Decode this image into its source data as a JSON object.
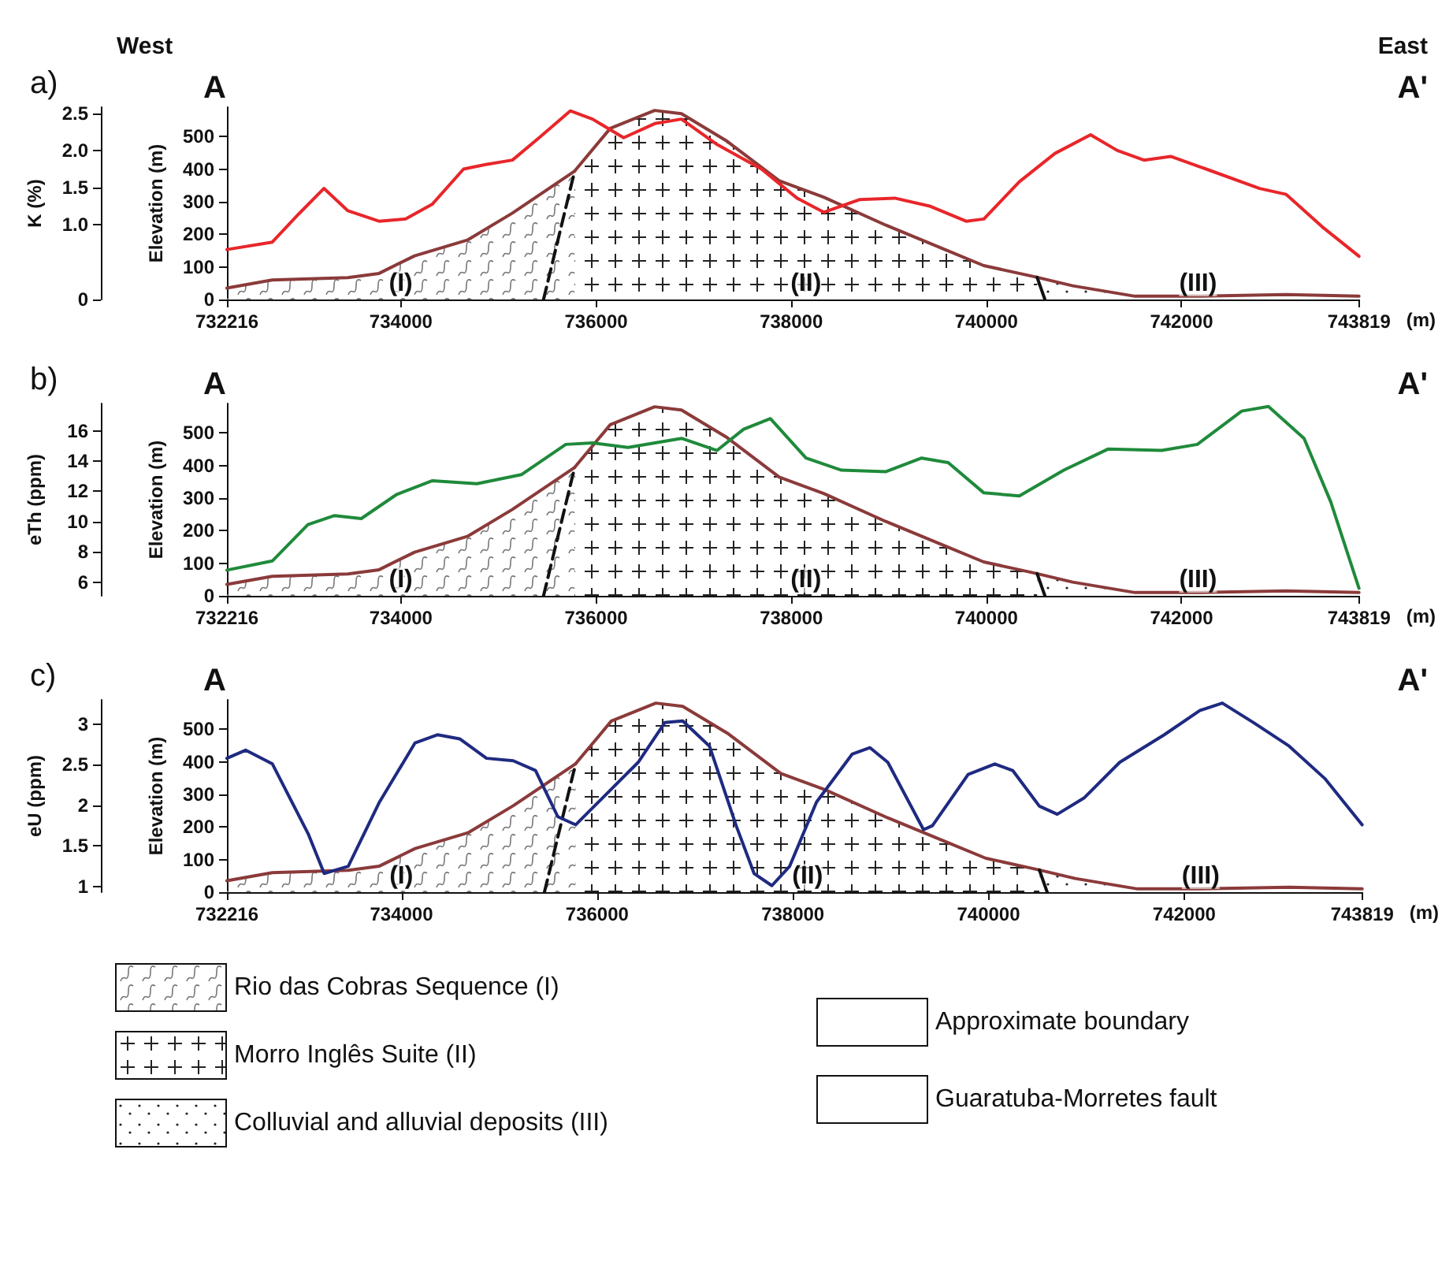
{
  "chart_data": [
    {
      "type": "line",
      "title": "a)",
      "annotations": [
        "West",
        "East",
        "A",
        "A'",
        "(I)",
        "(II)",
        "(III)"
      ],
      "xlabel": "(m)",
      "ylabel": "K (%)",
      "y2label": "Elevation (m)",
      "xlim": [
        732216,
        743819
      ],
      "xticks": [
        732216,
        734000,
        736000,
        738000,
        740000,
        742000,
        743819
      ],
      "ylim": [
        0,
        2.58
      ],
      "yticks": [
        0,
        {
          "value": 1,
          "label": "1.0"
        },
        1.5,
        {
          "value": 2,
          "label": "2.0"
        },
        2.5
      ],
      "y2lim": [
        0,
        590
      ],
      "y2ticks": [
        0,
        100,
        200,
        300,
        400,
        500
      ],
      "marker": "none",
      "line_style": "solid",
      "legend": false,
      "series": [
        {
          "type": "area",
          "axis": "y2",
          "color": "#8b3a3a",
          "x": [
            732216,
            732680,
            733456,
            733775,
            734140,
            734686,
            735142,
            735780
          ],
          "values": [
            35,
            60,
            67,
            80,
            134,
            183,
            265,
            394
          ]
        },
        {
          "type": "area",
          "axis": "y2",
          "color": "#8b3a3a",
          "x": [
            735780,
            736145,
            736600,
            736875,
            737330,
            737877,
            738332,
            738970,
            739609,
            739973,
            740429,
            740520
          ],
          "values": [
            394,
            525,
            580,
            570,
            488,
            364,
            314,
            228,
            149,
            104,
            74,
            68
          ]
        },
        {
          "type": "area",
          "axis": "y2",
          "color": "#8b3a3a",
          "x": [
            740520,
            740885,
            741523,
            742161,
            743072,
            743819
          ],
          "values": [
            68,
            42,
            10,
            10,
            15,
            10
          ]
        },
        {
          "type": "line",
          "axis": "y2",
          "color": "#111111",
          "line_style": "dashed",
          "x": [
            735461,
            735780
          ],
          "values": [
            0,
            394
          ]
        },
        {
          "type": "line",
          "axis": "y2",
          "color": "#111111",
          "x": [
            740520,
            740600
          ],
          "values": [
            68,
            0
          ]
        },
        {
          "type": "line",
          "color": "#e8262a",
          "x": [
            732216,
            732681,
            732954,
            733210,
            733456,
            733775,
            734048,
            734322,
            734641,
            734869,
            735142,
            735416,
            735735,
            735963,
            736282,
            736601,
            736875,
            737239,
            737695,
            738059,
            738333,
            738698,
            739062,
            739427,
            739792,
            739974,
            740338,
            740703,
            741068,
            741341,
            741615,
            741889,
            742253,
            742800,
            743073,
            743438,
            743819
          ],
          "values": [
            0.67,
            0.77,
            1.15,
            1.49,
            1.19,
            1.05,
            1.08,
            1.28,
            1.75,
            1.81,
            1.87,
            2.17,
            2.53,
            2.42,
            2.17,
            2.36,
            2.42,
            2.08,
            1.75,
            1.36,
            1.17,
            1.34,
            1.36,
            1.25,
            1.05,
            1.08,
            1.58,
            1.96,
            2.21,
            2.0,
            1.87,
            1.92,
            1.75,
            1.49,
            1.41,
            0.98,
            0.58
          ]
        }
      ]
    },
    {
      "type": "line",
      "title": "b)",
      "annotations": [
        "A",
        "A'",
        "(I)",
        "(II)",
        "(III)"
      ],
      "xlabel": "(m)",
      "ylabel": "eTh (ppm)",
      "y2label": "Elevation (m)",
      "xlim": [
        732216,
        743819
      ],
      "xticks": [
        732216,
        734000,
        736000,
        738000,
        740000,
        742000,
        743819
      ],
      "ylim": [
        5.1,
        17.8
      ],
      "yticks": [
        6,
        8,
        10,
        12,
        14,
        16
      ],
      "y2lim": [
        0,
        590
      ],
      "y2ticks": [
        0,
        100,
        200,
        300,
        400,
        500
      ],
      "marker": "none",
      "line_style": "solid",
      "legend": false,
      "series": [
        {
          "type": "area",
          "axis": "y2",
          "color": "#8b3a3a",
          "x": [
            732216,
            732680,
            733456,
            733775,
            734140,
            734686,
            735142,
            735780
          ],
          "values": [
            35,
            60,
            67,
            80,
            134,
            183,
            265,
            394
          ]
        },
        {
          "type": "area",
          "axis": "y2",
          "color": "#8b3a3a",
          "x": [
            735780,
            736145,
            736600,
            736875,
            737330,
            737877,
            738332,
            738970,
            739609,
            739973,
            740429,
            740520
          ],
          "values": [
            394,
            525,
            580,
            570,
            488,
            364,
            314,
            228,
            149,
            104,
            74,
            68
          ]
        },
        {
          "type": "area",
          "axis": "y2",
          "color": "#8b3a3a",
          "x": [
            740520,
            740885,
            741523,
            742161,
            743072,
            743819
          ],
          "values": [
            68,
            42,
            10,
            10,
            15,
            10
          ]
        },
        {
          "type": "line",
          "axis": "y2",
          "color": "#111111",
          "line_style": "dashed",
          "x": [
            735461,
            735780
          ],
          "values": [
            0,
            394
          ]
        },
        {
          "type": "line",
          "axis": "y2",
          "color": "#111111",
          "x": [
            740520,
            740600
          ],
          "values": [
            68,
            0
          ]
        },
        {
          "type": "line",
          "color": "#1f8a3b",
          "x": [
            732216,
            732681,
            733046,
            733319,
            733593,
            733957,
            734322,
            734778,
            735233,
            735689,
            735963,
            736327,
            736875,
            737239,
            737512,
            737786,
            738151,
            738515,
            738971,
            739336,
            739609,
            739974,
            740338,
            740794,
            741250,
            741797,
            742162,
            742617,
            742891,
            743256,
            743530,
            743819
          ],
          "values": [
            6.8,
            7.4,
            9.8,
            10.4,
            10.2,
            11.8,
            12.7,
            12.5,
            13.1,
            15.1,
            15.2,
            14.9,
            15.5,
            14.7,
            16.1,
            16.8,
            14.2,
            13.4,
            13.3,
            14.2,
            13.9,
            11.9,
            11.7,
            13.4,
            14.8,
            14.7,
            15.1,
            17.3,
            17.6,
            15.5,
            11.3,
            5.6
          ]
        }
      ]
    },
    {
      "type": "line",
      "title": "c)",
      "annotations": [
        "A",
        "A'",
        "(I)",
        "(II)",
        "(III)"
      ],
      "xlabel": "(m)",
      "ylabel": "eU (ppm)",
      "y2label": "Elevation (m)",
      "xlim": [
        732216,
        743819
      ],
      "xticks": [
        732216,
        734000,
        736000,
        738000,
        740000,
        742000,
        743819
      ],
      "ylim": [
        0.93,
        3.3
      ],
      "yticks": [
        1,
        1.5,
        2,
        2.5,
        3
      ],
      "y2lim": [
        0,
        590
      ],
      "y2ticks": [
        0,
        100,
        200,
        300,
        400,
        500
      ],
      "marker": "none",
      "line_style": "solid",
      "legend": "bottom",
      "series": [
        {
          "type": "area",
          "axis": "y2",
          "name": "Rio das Cobras Sequence (I)",
          "color": "#8b3a3a",
          "x": [
            732216,
            732680,
            733456,
            733775,
            734140,
            734686,
            735142,
            735780
          ],
          "values": [
            35,
            60,
            67,
            80,
            134,
            183,
            265,
            394
          ]
        },
        {
          "type": "area",
          "axis": "y2",
          "name": "Morro Inglês Suite (II)",
          "color": "#8b3a3a",
          "x": [
            735780,
            736145,
            736600,
            736875,
            737330,
            737877,
            738332,
            738970,
            739609,
            739973,
            740429,
            740520
          ],
          "values": [
            394,
            525,
            580,
            570,
            488,
            364,
            314,
            228,
            149,
            104,
            74,
            68
          ]
        },
        {
          "type": "area",
          "axis": "y2",
          "name": "Colluvial and alluvial deposits (III)",
          "color": "#8b3a3a",
          "x": [
            740520,
            740885,
            741523,
            742161,
            743072,
            743819
          ],
          "values": [
            68,
            42,
            10,
            10,
            15,
            10
          ]
        },
        {
          "type": "line",
          "axis": "y2",
          "name": "Approximate boundary",
          "color": "#111111",
          "line_style": "dashed",
          "x": [
            735461,
            735780
          ],
          "values": [
            0,
            394
          ]
        },
        {
          "type": "line",
          "axis": "y2",
          "name": "Guaratuba-Morretes fault",
          "color": "#111111",
          "x": [
            740520,
            740600
          ],
          "values": [
            68,
            0
          ]
        },
        {
          "type": "line",
          "color": "#1f2a80",
          "x": [
            732216,
            732407,
            732681,
            733046,
            733210,
            733456,
            733775,
            734139,
            734367,
            734595,
            734869,
            735142,
            735370,
            735598,
            735780,
            736054,
            736419,
            736692,
            736875,
            737148,
            737421,
            737604,
            737786,
            737968,
            738242,
            738606,
            738789,
            738971,
            739336,
            739427,
            739792,
            740065,
            740247,
            740520,
            740703,
            740976,
            741341,
            741797,
            742162,
            742390,
            742709,
            743073,
            743438,
            743819
          ],
          "values": [
            2.58,
            2.68,
            2.51,
            1.65,
            1.16,
            1.25,
            2.04,
            2.77,
            2.87,
            2.82,
            2.58,
            2.55,
            2.43,
            1.86,
            1.76,
            2.09,
            2.53,
            3.02,
            3.04,
            2.73,
            1.75,
            1.16,
            1.01,
            1.25,
            2.04,
            2.63,
            2.71,
            2.53,
            1.7,
            1.75,
            2.38,
            2.51,
            2.43,
            1.99,
            1.89,
            2.09,
            2.53,
            2.87,
            3.17,
            3.26,
            3.02,
            2.73,
            2.33,
            1.76
          ]
        }
      ]
    }
  ]
}
